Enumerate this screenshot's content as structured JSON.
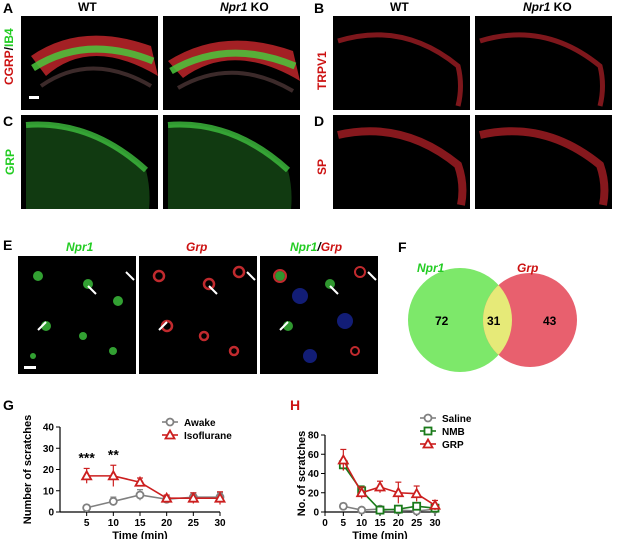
{
  "panels": {
    "A": {
      "letter": "A",
      "col1": "WT",
      "col2_italic": "Npr1",
      "col2_rest": " KO",
      "label_part1": "CGRP",
      "label_sep": "/",
      "label_part2": "IB4"
    },
    "B": {
      "letter": "B",
      "col1": "WT",
      "col2_italic": "Npr1",
      "col2_rest": " KO",
      "label": "TRPV1"
    },
    "C": {
      "letter": "C",
      "label": "GRP"
    },
    "D": {
      "letter": "D",
      "label": "SP"
    },
    "E": {
      "letter": "E",
      "t1": "Npr1",
      "t2": "Grp",
      "t3a": "Npr1",
      "t3sep": "/",
      "t3b": "Grp"
    },
    "F": {
      "letter": "F",
      "left_name": "Npr1",
      "right_name": "Grp",
      "left_only": "72",
      "overlap": "31",
      "right_only": "43",
      "left_color": "#7de86a",
      "right_color": "#e8606e",
      "overlap_color": "#e6ea78"
    },
    "G": {
      "letter": "G"
    },
    "H": {
      "letter": "H"
    }
  },
  "chart_data": [
    {
      "type": "line",
      "title": "",
      "xlabel": "Time (min)",
      "ylabel": "Number of scratches",
      "xlim": [
        0,
        30
      ],
      "ylim": [
        0,
        40
      ],
      "xticks": [
        5,
        10,
        15,
        20,
        25,
        30
      ],
      "yticks": [
        0,
        10,
        20,
        30,
        40
      ],
      "x": [
        5,
        10,
        15,
        20,
        25,
        30
      ],
      "series": [
        {
          "name": "Awake",
          "color": "#808080",
          "marker": "circle",
          "values": [
            2,
            5,
            8,
            6,
            7,
            7
          ],
          "errors": [
            1,
            2,
            2.5,
            1.5,
            2,
            2
          ]
        },
        {
          "name": "Isoflurane",
          "color": "#cc1f1f",
          "marker": "triangle",
          "values": [
            17,
            17,
            14,
            6.5,
            6.5,
            6.5
          ],
          "errors": [
            3.5,
            5,
            2,
            1.5,
            2.5,
            3
          ]
        }
      ],
      "annotations": [
        {
          "x": 5,
          "text": "***"
        },
        {
          "x": 10,
          "text": "**"
        }
      ],
      "legend": "top-right"
    },
    {
      "type": "line",
      "title": "",
      "xlabel": "Time (min)",
      "ylabel": "No. of scratches",
      "xlim": [
        0,
        30
      ],
      "ylim": [
        0,
        80
      ],
      "xticks": [
        0,
        5,
        10,
        15,
        20,
        25,
        30
      ],
      "yticks": [
        0,
        20,
        40,
        60,
        80
      ],
      "x": [
        5,
        10,
        15,
        20,
        25,
        30
      ],
      "series": [
        {
          "name": "Saline",
          "color": "#808080",
          "marker": "circle",
          "values": [
            6,
            2,
            3,
            2,
            1,
            3
          ],
          "errors": [
            3,
            1,
            1,
            1,
            1,
            1
          ]
        },
        {
          "name": "NMB",
          "color": "#1a7a1a",
          "marker": "square",
          "values": [
            49,
            22,
            2,
            3,
            6,
            4
          ],
          "errors": [
            5,
            5,
            2,
            2,
            3,
            3
          ]
        },
        {
          "name": "GRP",
          "color": "#cc1f1f",
          "marker": "triangle",
          "values": [
            54,
            20,
            26,
            20,
            19,
            7
          ],
          "errors": [
            11,
            6,
            6,
            11,
            8,
            5
          ]
        }
      ],
      "legend": "top-right"
    }
  ]
}
